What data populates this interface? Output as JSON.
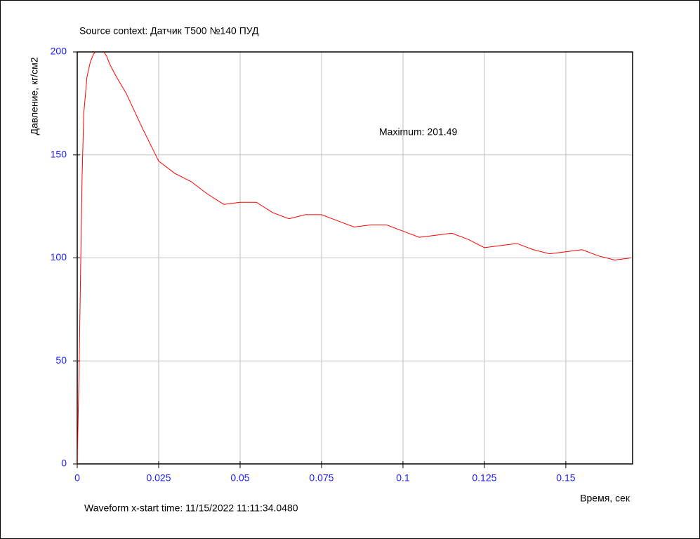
{
  "chart_data": {
    "type": "line",
    "title": "Source context: Датчик T500 №140 ПУД",
    "y_label": "Давление, кг/см2",
    "x_label": "Время, сек",
    "annotation": "Maximum: 201.49",
    "footer": "Waveform x-start time: 11/15/2022 11:11:34.0480",
    "x": [
      0,
      0.0005,
      0.001,
      0.0015,
      0.002,
      0.003,
      0.004,
      0.005,
      0.006,
      0.007,
      0.008,
      0.009,
      0.01,
      0.012,
      0.015,
      0.02,
      0.025,
      0.03,
      0.035,
      0.04,
      0.045,
      0.05,
      0.055,
      0.06,
      0.065,
      0.07,
      0.075,
      0.08,
      0.085,
      0.09,
      0.095,
      0.1,
      0.105,
      0.11,
      0.115,
      0.12,
      0.125,
      0.13,
      0.135,
      0.14,
      0.145,
      0.15,
      0.155,
      0.16,
      0.165,
      0.17
    ],
    "series": [
      {
        "name": "Давление",
        "color": "#ff0000",
        "values": [
          0,
          40,
          90,
          140,
          170,
          188,
          195,
          199,
          200.5,
          201.49,
          200.5,
          198,
          194,
          188,
          180,
          163,
          147,
          141,
          137,
          131,
          126,
          127,
          127,
          122,
          119,
          121,
          121,
          118,
          115,
          116,
          116,
          113,
          110,
          111,
          112,
          109,
          105,
          106,
          107,
          104,
          102,
          103,
          104,
          101,
          99,
          100
        ]
      }
    ],
    "xlim": [
      0,
      0.1705
    ],
    "ylim": [
      0,
      200
    ],
    "xticks": [
      0,
      0.025,
      0.05,
      0.075,
      0.1,
      0.125,
      0.15
    ],
    "yticks": [
      0,
      50,
      100,
      150,
      200
    ],
    "grid": true
  }
}
